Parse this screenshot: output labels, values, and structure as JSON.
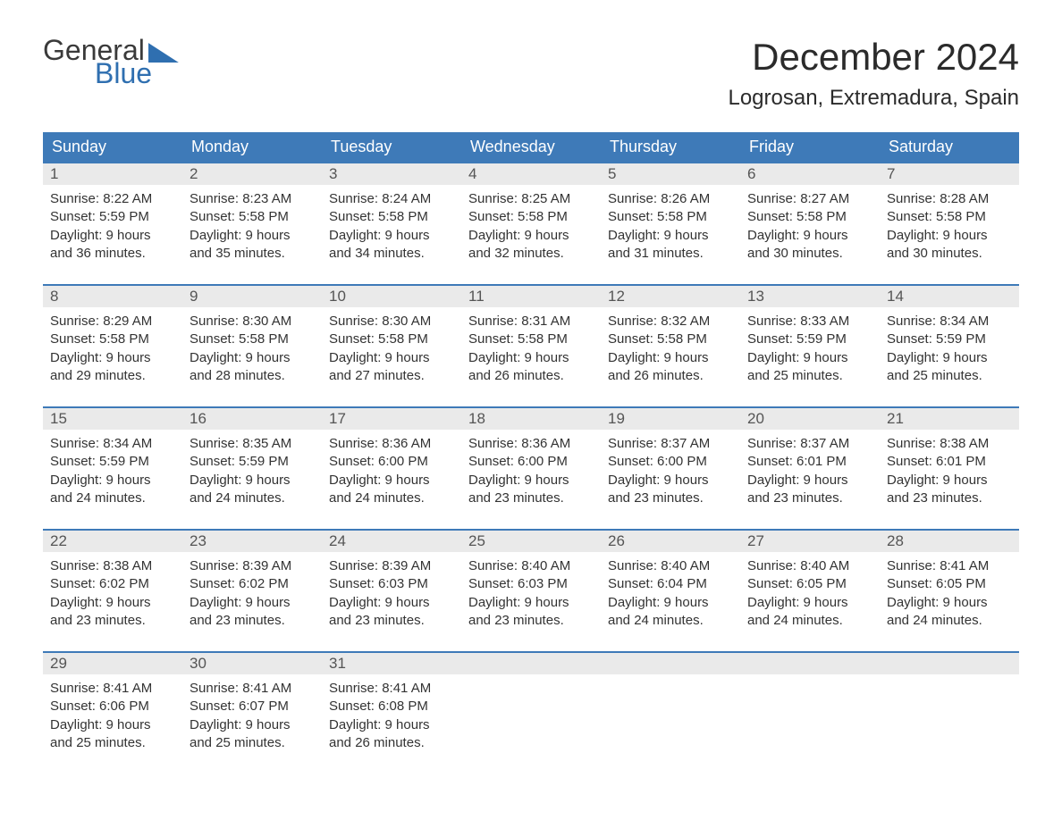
{
  "logo": {
    "top": "General",
    "bottom": "Blue"
  },
  "title": "December 2024",
  "location": "Logrosan, Extremadura, Spain",
  "colors": {
    "header_bg": "#3e7ab8",
    "header_text": "#ffffff",
    "daynum_bg": "#eaeaea",
    "body_text": "#333333",
    "logo_blue": "#2f6fb0"
  },
  "dayNames": [
    "Sunday",
    "Monday",
    "Tuesday",
    "Wednesday",
    "Thursday",
    "Friday",
    "Saturday"
  ],
  "weeks": [
    [
      {
        "n": "1",
        "sr": "8:22 AM",
        "ss": "5:59 PM",
        "dl": "9 hours and 36 minutes."
      },
      {
        "n": "2",
        "sr": "8:23 AM",
        "ss": "5:58 PM",
        "dl": "9 hours and 35 minutes."
      },
      {
        "n": "3",
        "sr": "8:24 AM",
        "ss": "5:58 PM",
        "dl": "9 hours and 34 minutes."
      },
      {
        "n": "4",
        "sr": "8:25 AM",
        "ss": "5:58 PM",
        "dl": "9 hours and 32 minutes."
      },
      {
        "n": "5",
        "sr": "8:26 AM",
        "ss": "5:58 PM",
        "dl": "9 hours and 31 minutes."
      },
      {
        "n": "6",
        "sr": "8:27 AM",
        "ss": "5:58 PM",
        "dl": "9 hours and 30 minutes."
      },
      {
        "n": "7",
        "sr": "8:28 AM",
        "ss": "5:58 PM",
        "dl": "9 hours and 30 minutes."
      }
    ],
    [
      {
        "n": "8",
        "sr": "8:29 AM",
        "ss": "5:58 PM",
        "dl": "9 hours and 29 minutes."
      },
      {
        "n": "9",
        "sr": "8:30 AM",
        "ss": "5:58 PM",
        "dl": "9 hours and 28 minutes."
      },
      {
        "n": "10",
        "sr": "8:30 AM",
        "ss": "5:58 PM",
        "dl": "9 hours and 27 minutes."
      },
      {
        "n": "11",
        "sr": "8:31 AM",
        "ss": "5:58 PM",
        "dl": "9 hours and 26 minutes."
      },
      {
        "n": "12",
        "sr": "8:32 AM",
        "ss": "5:58 PM",
        "dl": "9 hours and 26 minutes."
      },
      {
        "n": "13",
        "sr": "8:33 AM",
        "ss": "5:59 PM",
        "dl": "9 hours and 25 minutes."
      },
      {
        "n": "14",
        "sr": "8:34 AM",
        "ss": "5:59 PM",
        "dl": "9 hours and 25 minutes."
      }
    ],
    [
      {
        "n": "15",
        "sr": "8:34 AM",
        "ss": "5:59 PM",
        "dl": "9 hours and 24 minutes."
      },
      {
        "n": "16",
        "sr": "8:35 AM",
        "ss": "5:59 PM",
        "dl": "9 hours and 24 minutes."
      },
      {
        "n": "17",
        "sr": "8:36 AM",
        "ss": "6:00 PM",
        "dl": "9 hours and 24 minutes."
      },
      {
        "n": "18",
        "sr": "8:36 AM",
        "ss": "6:00 PM",
        "dl": "9 hours and 23 minutes."
      },
      {
        "n": "19",
        "sr": "8:37 AM",
        "ss": "6:00 PM",
        "dl": "9 hours and 23 minutes."
      },
      {
        "n": "20",
        "sr": "8:37 AM",
        "ss": "6:01 PM",
        "dl": "9 hours and 23 minutes."
      },
      {
        "n": "21",
        "sr": "8:38 AM",
        "ss": "6:01 PM",
        "dl": "9 hours and 23 minutes."
      }
    ],
    [
      {
        "n": "22",
        "sr": "8:38 AM",
        "ss": "6:02 PM",
        "dl": "9 hours and 23 minutes."
      },
      {
        "n": "23",
        "sr": "8:39 AM",
        "ss": "6:02 PM",
        "dl": "9 hours and 23 minutes."
      },
      {
        "n": "24",
        "sr": "8:39 AM",
        "ss": "6:03 PM",
        "dl": "9 hours and 23 minutes."
      },
      {
        "n": "25",
        "sr": "8:40 AM",
        "ss": "6:03 PM",
        "dl": "9 hours and 23 minutes."
      },
      {
        "n": "26",
        "sr": "8:40 AM",
        "ss": "6:04 PM",
        "dl": "9 hours and 24 minutes."
      },
      {
        "n": "27",
        "sr": "8:40 AM",
        "ss": "6:05 PM",
        "dl": "9 hours and 24 minutes."
      },
      {
        "n": "28",
        "sr": "8:41 AM",
        "ss": "6:05 PM",
        "dl": "9 hours and 24 minutes."
      }
    ],
    [
      {
        "n": "29",
        "sr": "8:41 AM",
        "ss": "6:06 PM",
        "dl": "9 hours and 25 minutes."
      },
      {
        "n": "30",
        "sr": "8:41 AM",
        "ss": "6:07 PM",
        "dl": "9 hours and 25 minutes."
      },
      {
        "n": "31",
        "sr": "8:41 AM",
        "ss": "6:08 PM",
        "dl": "9 hours and 26 minutes."
      },
      null,
      null,
      null,
      null
    ]
  ],
  "labels": {
    "sunrise": "Sunrise:",
    "sunset": "Sunset:",
    "daylight": "Daylight:"
  }
}
